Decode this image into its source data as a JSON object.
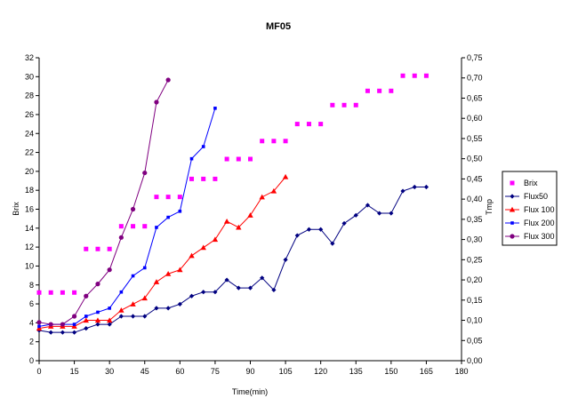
{
  "chart_data": {
    "type": "line",
    "title": "MF05",
    "xlabel": "Time(min)",
    "ylabel": "Brix",
    "y2label": "Tmp",
    "xlim": [
      0,
      180
    ],
    "ylim": [
      0,
      32
    ],
    "y2lim": [
      0,
      0.75
    ],
    "xticks": [
      "0",
      "15",
      "30",
      "45",
      "60",
      "75",
      "90",
      "105",
      "120",
      "135",
      "150",
      "165",
      "180"
    ],
    "yticks": [
      "0",
      "2",
      "4",
      "6",
      "8",
      "10",
      "12",
      "14",
      "16",
      "18",
      "20",
      "22",
      "24",
      "26",
      "28",
      "30",
      "32"
    ],
    "y2ticks": [
      "0,00",
      "0,05",
      "0,10",
      "0,15",
      "0,20",
      "0,25",
      "0,30",
      "0,35",
      "0,40",
      "0,45",
      "0,50",
      "0,55",
      "0,60",
      "0,65",
      "0,70",
      "0,75"
    ],
    "grid": false,
    "legend_position": "right",
    "series": [
      {
        "name": "Brix",
        "axis": "left",
        "color": "#ff00ff",
        "marker": "square",
        "line": false,
        "x": [
          0,
          5,
          10,
          15,
          20,
          25,
          30,
          35,
          40,
          45,
          50,
          55,
          60,
          65,
          70,
          75,
          80,
          85,
          90,
          95,
          100,
          105,
          110,
          115,
          120,
          125,
          130,
          135,
          140,
          145,
          150,
          155,
          160,
          165
        ],
        "y": [
          7.2,
          7.2,
          7.2,
          7.2,
          11.8,
          11.8,
          11.8,
          14.2,
          14.2,
          14.2,
          17.3,
          17.3,
          17.3,
          19.2,
          19.2,
          19.2,
          21.3,
          21.3,
          21.3,
          23.2,
          23.2,
          23.2,
          25.0,
          25.0,
          25.0,
          27.0,
          27.0,
          27.0,
          28.5,
          28.5,
          28.5,
          30.1,
          30.1,
          30.1
        ]
      },
      {
        "name": "Flux50",
        "axis": "right",
        "color": "#000080",
        "marker": "diamond",
        "line": true,
        "x": [
          0,
          5,
          10,
          15,
          20,
          25,
          30,
          35,
          40,
          45,
          50,
          55,
          60,
          65,
          70,
          75,
          80,
          85,
          90,
          95,
          100,
          105,
          110,
          115,
          120,
          125,
          130,
          135,
          140,
          145,
          150,
          155,
          160,
          165
        ],
        "y": [
          0.075,
          0.07,
          0.07,
          0.07,
          0.08,
          0.09,
          0.09,
          0.11,
          0.11,
          0.11,
          0.13,
          0.13,
          0.14,
          0.16,
          0.17,
          0.17,
          0.2,
          0.18,
          0.18,
          0.205,
          0.175,
          0.25,
          0.31,
          0.325,
          0.325,
          0.29,
          0.34,
          0.36,
          0.385,
          0.365,
          0.365,
          0.42,
          0.43,
          0.43
        ]
      },
      {
        "name": "Flux 100",
        "axis": "right",
        "color": "#ff0000",
        "marker": "triangle",
        "line": true,
        "x": [
          0,
          5,
          10,
          15,
          20,
          25,
          30,
          35,
          40,
          45,
          50,
          55,
          60,
          65,
          70,
          75,
          80,
          85,
          90,
          95,
          100,
          105
        ],
        "y": [
          0.08,
          0.085,
          0.085,
          0.085,
          0.1,
          0.1,
          0.1,
          0.125,
          0.14,
          0.155,
          0.195,
          0.215,
          0.225,
          0.26,
          0.28,
          0.3,
          0.345,
          0.33,
          0.36,
          0.405,
          0.42,
          0.455
        ]
      },
      {
        "name": "Flux 200",
        "axis": "right",
        "color": "#0000ff",
        "marker": "square",
        "line": true,
        "x": [
          0,
          5,
          10,
          15,
          20,
          25,
          30,
          35,
          40,
          45,
          50,
          55,
          60,
          65,
          70,
          75
        ],
        "y": [
          0.085,
          0.09,
          0.09,
          0.09,
          0.11,
          0.12,
          0.13,
          0.17,
          0.21,
          0.23,
          0.33,
          0.355,
          0.37,
          0.5,
          0.53,
          0.625
        ]
      },
      {
        "name": "Flux 300",
        "axis": "right",
        "color": "#800080",
        "marker": "circle",
        "line": true,
        "x": [
          0,
          5,
          10,
          15,
          20,
          25,
          30,
          35,
          40,
          45,
          50,
          55
        ],
        "y": [
          0.095,
          0.09,
          0.09,
          0.11,
          0.16,
          0.19,
          0.225,
          0.305,
          0.375,
          0.465,
          0.64,
          0.695
        ]
      }
    ]
  }
}
